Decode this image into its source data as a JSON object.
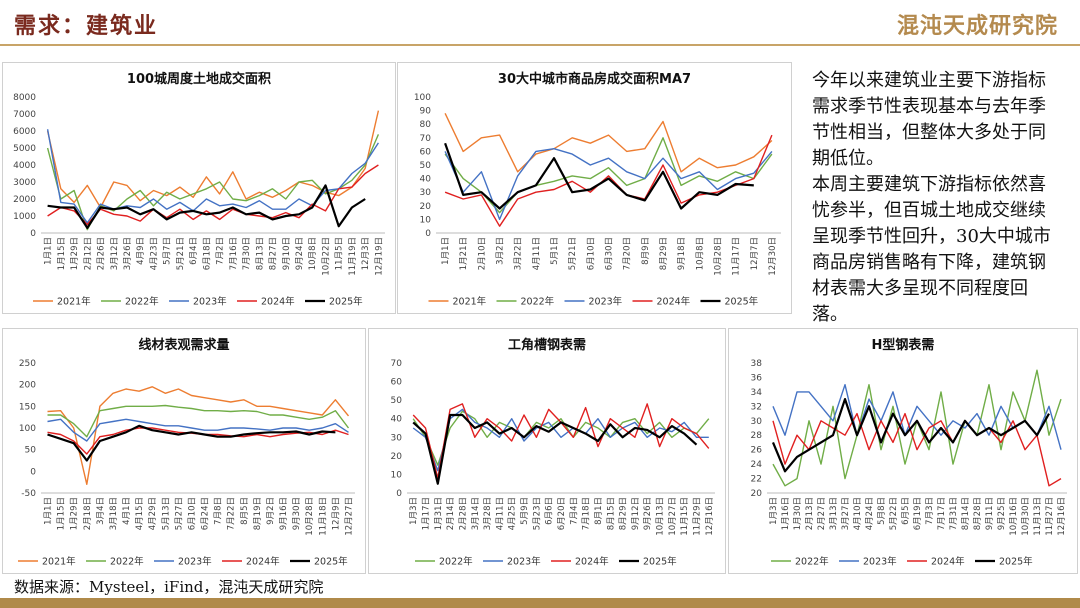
{
  "header": {
    "title": "需求：建筑业",
    "logo": "混沌天成研究院"
  },
  "commentary": [
    "今年以来建筑业主要下游指标需求季节性表现基本与去年季节性相当，但整体大多处于同期低位。",
    "本周主要建筑下游指标依然喜忧参半，但百城土地成交继续呈现季节性回升，30大中城市商品房销售略有下降，建筑钢材表需大多呈现不同程度回落。"
  ],
  "footer": {
    "source": "数据来源：Mysteel，iFind，混沌天成研究院"
  },
  "chart_data": [
    {
      "type": "line",
      "title": "100城周度土地成交面积",
      "ylim": [
        0,
        8000
      ],
      "yticks": [
        0,
        1000,
        2000,
        3000,
        4000,
        5000,
        6000,
        7000,
        8000
      ],
      "grid": false,
      "categories": [
        "1月1日",
        "1月15日",
        "1月29日",
        "2月12日",
        "2月26日",
        "3月12日",
        "3月26日",
        "4月9日",
        "4月23日",
        "5月7日",
        "5月21日",
        "6月4日",
        "6月18日",
        "7月2日",
        "7月16日",
        "7月30日",
        "8月13日",
        "8月27日",
        "9月10日",
        "9月24日",
        "10月8日",
        "10月22日",
        "11月5日",
        "11月19日",
        "12月3日",
        "12月19日"
      ],
      "series": [
        {
          "name": "2021年",
          "color": "#ed7d31",
          "values": [
            6000,
            2600,
            1800,
            2800,
            1500,
            3000,
            2800,
            1900,
            2500,
            2200,
            2700,
            2100,
            3300,
            2300,
            3600,
            2000,
            2400,
            2100,
            2500,
            3000,
            2800,
            2400,
            2200,
            2700,
            3800,
            7200
          ]
        },
        {
          "name": "2022年",
          "color": "#70ad47",
          "values": [
            5000,
            2000,
            2500,
            200,
            1600,
            1300,
            2000,
            2500,
            1600,
            2400,
            2000,
            2300,
            2600,
            3000,
            2000,
            1900,
            2200,
            2600,
            2000,
            3000,
            3100,
            2300,
            2600,
            3100,
            4000,
            5800
          ]
        },
        {
          "name": "2023年",
          "color": "#4472c4",
          "values": [
            6100,
            1800,
            1700,
            600,
            1700,
            1400,
            1600,
            1500,
            2000,
            1400,
            1800,
            1300,
            2000,
            1600,
            1700,
            1500,
            1900,
            1400,
            1400,
            2000,
            1600,
            2500,
            2600,
            3500,
            4100,
            5300
          ]
        },
        {
          "name": "2024年",
          "color": "#e02020",
          "values": [
            1000,
            1500,
            1300,
            500,
            1400,
            1100,
            1000,
            700,
            1400,
            900,
            1400,
            800,
            1300,
            800,
            1400,
            1100,
            1000,
            900,
            1200,
            900,
            1700,
            1300,
            2600,
            2700,
            3500,
            4000
          ]
        },
        {
          "name": "2025年",
          "color": "#000000",
          "values": [
            1600,
            1500,
            1500,
            300,
            1500,
            1400,
            1500,
            1100,
            1400,
            800,
            1200,
            1300,
            1100,
            1200,
            1500,
            1100,
            1200,
            800,
            1000,
            1100,
            1500,
            2800,
            400,
            1500,
            2000,
            null
          ]
        }
      ]
    },
    {
      "type": "line",
      "title": "30大中城市商品房成交面积MA7",
      "ylim": [
        0,
        100
      ],
      "yticks": [
        0,
        10,
        20,
        30,
        40,
        50,
        60,
        70,
        80,
        90,
        100
      ],
      "grid": false,
      "categories": [
        "1月1日",
        "1月21日",
        "2月10日",
        "3月2日",
        "3月22日",
        "4月11日",
        "5月1日",
        "5月21日",
        "6月10日",
        "6月30日",
        "7月20日",
        "8月9日",
        "8月29日",
        "9月18日",
        "10月8日",
        "10月28日",
        "11月17日",
        "12月7日",
        "12月30日"
      ],
      "series": [
        {
          "name": "2021年",
          "color": "#ed7d31",
          "values": [
            88,
            60,
            70,
            72,
            45,
            58,
            62,
            70,
            66,
            72,
            60,
            62,
            82,
            45,
            55,
            48,
            50,
            56,
            68
          ]
        },
        {
          "name": "2022年",
          "color": "#70ad47",
          "values": [
            58,
            40,
            30,
            15,
            30,
            35,
            38,
            42,
            40,
            48,
            35,
            40,
            70,
            35,
            42,
            38,
            45,
            40,
            58
          ]
        },
        {
          "name": "2023年",
          "color": "#4472c4",
          "values": [
            60,
            30,
            45,
            10,
            42,
            60,
            62,
            58,
            50,
            55,
            45,
            40,
            55,
            40,
            45,
            32,
            40,
            44,
            60
          ]
        },
        {
          "name": "2024年",
          "color": "#e02020",
          "values": [
            30,
            25,
            28,
            5,
            25,
            30,
            32,
            38,
            30,
            42,
            28,
            25,
            50,
            22,
            28,
            30,
            35,
            40,
            72
          ]
        },
        {
          "name": "2025年",
          "color": "#000000",
          "values": [
            66,
            28,
            30,
            18,
            30,
            35,
            55,
            30,
            32,
            40,
            28,
            24,
            45,
            18,
            30,
            28,
            36,
            35,
            null
          ]
        }
      ]
    },
    {
      "type": "line",
      "title": "线材表观需求量",
      "ylim": [
        -50,
        250
      ],
      "yticks": [
        -50,
        0,
        50,
        100,
        150,
        200,
        250
      ],
      "grid": false,
      "categories": [
        "1月1日",
        "1月15日",
        "1月29日",
        "2月18日",
        "3月4日",
        "3月18日",
        "4月1日",
        "4月15日",
        "4月29日",
        "5月13日",
        "5月27日",
        "6月10日",
        "6月24日",
        "7月8日",
        "7月22日",
        "8月5日",
        "8月19日",
        "9月2日",
        "9月16日",
        "9月30日",
        "10月28日",
        "11月18日",
        "12月9日",
        "12月27日"
      ],
      "series": [
        {
          "name": "2021年",
          "color": "#ed7d31",
          "values": [
            138,
            140,
            100,
            -30,
            150,
            180,
            190,
            185,
            195,
            180,
            190,
            175,
            170,
            165,
            160,
            165,
            150,
            150,
            145,
            140,
            135,
            130,
            165,
            128
          ]
        },
        {
          "name": "2022年",
          "color": "#70ad47",
          "values": [
            130,
            130,
            110,
            80,
            140,
            145,
            150,
            150,
            150,
            152,
            148,
            145,
            140,
            140,
            138,
            140,
            138,
            130,
            130,
            125,
            120,
            125,
            140,
            100
          ]
        },
        {
          "name": "2023年",
          "color": "#4472c4",
          "values": [
            115,
            120,
            90,
            70,
            110,
            115,
            120,
            115,
            110,
            105,
            105,
            100,
            95,
            95,
            100,
            100,
            98,
            95,
            100,
            100,
            95,
            100,
            110,
            90
          ]
        },
        {
          "name": "2024年",
          "color": "#e02020",
          "values": [
            90,
            85,
            70,
            40,
            80,
            85,
            95,
            100,
            100,
            95,
            90,
            88,
            85,
            85,
            82,
            80,
            85,
            80,
            85,
            88,
            90,
            85,
            95,
            85
          ]
        },
        {
          "name": "2025年",
          "color": "#000000",
          "values": [
            85,
            75,
            65,
            25,
            70,
            80,
            90,
            105,
            95,
            90,
            85,
            90,
            85,
            80,
            80,
            85,
            88,
            90,
            90,
            92,
            85,
            92,
            90,
            null
          ]
        }
      ]
    },
    {
      "type": "line",
      "title": "工角槽钢表需",
      "ylim": [
        0,
        70
      ],
      "yticks": [
        0,
        10,
        20,
        30,
        40,
        50,
        60,
        70
      ],
      "grid": false,
      "categories": [
        "1月3日",
        "1月17日",
        "1月31日",
        "2月14日",
        "2月28日",
        "3月14日",
        "3月28日",
        "4月11日",
        "4月25日",
        "5月9日",
        "5月23日",
        "6月6日",
        "6月20日",
        "7月4日",
        "7月18日",
        "8月1日",
        "8月15日",
        "8月29日",
        "9月12日",
        "9月26日",
        "10月13日",
        "10月27日",
        "11月15日",
        "11月29日",
        "12月16日"
      ],
      "series": [
        {
          "name": "2022年",
          "color": "#70ad47",
          "values": [
            40,
            30,
            15,
            35,
            44,
            40,
            30,
            38,
            35,
            30,
            38,
            35,
            40,
            30,
            38,
            35,
            30,
            38,
            40,
            32,
            38,
            30,
            35,
            32,
            40
          ]
        },
        {
          "name": "2023年",
          "color": "#4472c4",
          "values": [
            35,
            30,
            12,
            40,
            45,
            38,
            35,
            30,
            40,
            28,
            35,
            38,
            30,
            35,
            32,
            40,
            30,
            35,
            38,
            30,
            35,
            33,
            38,
            30,
            30
          ]
        },
        {
          "name": "2024年",
          "color": "#e02020",
          "values": [
            42,
            35,
            8,
            45,
            48,
            30,
            40,
            35,
            28,
            42,
            30,
            45,
            38,
            30,
            46,
            25,
            40,
            35,
            30,
            48,
            25,
            40,
            35,
            32,
            24
          ]
        },
        {
          "name": "2025年",
          "color": "#000000",
          "values": [
            38,
            32,
            5,
            42,
            42,
            35,
            38,
            32,
            35,
            30,
            36,
            33,
            38,
            35,
            32,
            28,
            37,
            30,
            35,
            34,
            30,
            36,
            32,
            26,
            null
          ]
        }
      ]
    },
    {
      "type": "line",
      "title": "H型钢表需",
      "ylim": [
        20,
        38
      ],
      "yticks": [
        20,
        22,
        24,
        26,
        28,
        30,
        32,
        34,
        36,
        38
      ],
      "grid": false,
      "categories": [
        "1月3日",
        "1月16日",
        "1月30日",
        "2月13日",
        "2月27日",
        "3月13日",
        "3月27日",
        "4月10日",
        "4月24日",
        "5月8日",
        "5月22日",
        "6月5日",
        "6月19日",
        "7月3日",
        "7月17日",
        "7月31日",
        "8月14日",
        "8月28日",
        "9月11日",
        "9月25日",
        "10月16日",
        "10月30日",
        "11月13日",
        "11月27日",
        "12月16日"
      ],
      "series": [
        {
          "name": "2022年",
          "color": "#70ad47",
          "values": [
            24,
            21,
            22,
            30,
            24,
            32,
            22,
            28,
            35,
            26,
            32,
            24,
            30,
            26,
            34,
            24,
            30,
            28,
            35,
            26,
            34,
            30,
            37,
            28,
            33
          ]
        },
        {
          "name": "2023年",
          "color": "#4472c4",
          "values": [
            32,
            28,
            34,
            34,
            32,
            30,
            35,
            28,
            33,
            30,
            34,
            28,
            32,
            30,
            28,
            30,
            29,
            31,
            28,
            32,
            29,
            30,
            28,
            32,
            26
          ]
        },
        {
          "name": "2024年",
          "color": "#e02020",
          "values": [
            30,
            24,
            28,
            26,
            30,
            29,
            28,
            31,
            26,
            30,
            27,
            31,
            26,
            29,
            30,
            27,
            30,
            28,
            29,
            27,
            30,
            26,
            28,
            21,
            22
          ]
        },
        {
          "name": "2025年",
          "color": "#000000",
          "values": [
            27,
            23,
            25,
            26,
            27,
            28,
            33,
            28,
            32,
            27,
            31,
            28,
            30,
            27,
            29,
            27,
            30,
            28,
            29,
            28,
            29,
            30,
            28,
            31,
            null
          ]
        }
      ]
    }
  ]
}
